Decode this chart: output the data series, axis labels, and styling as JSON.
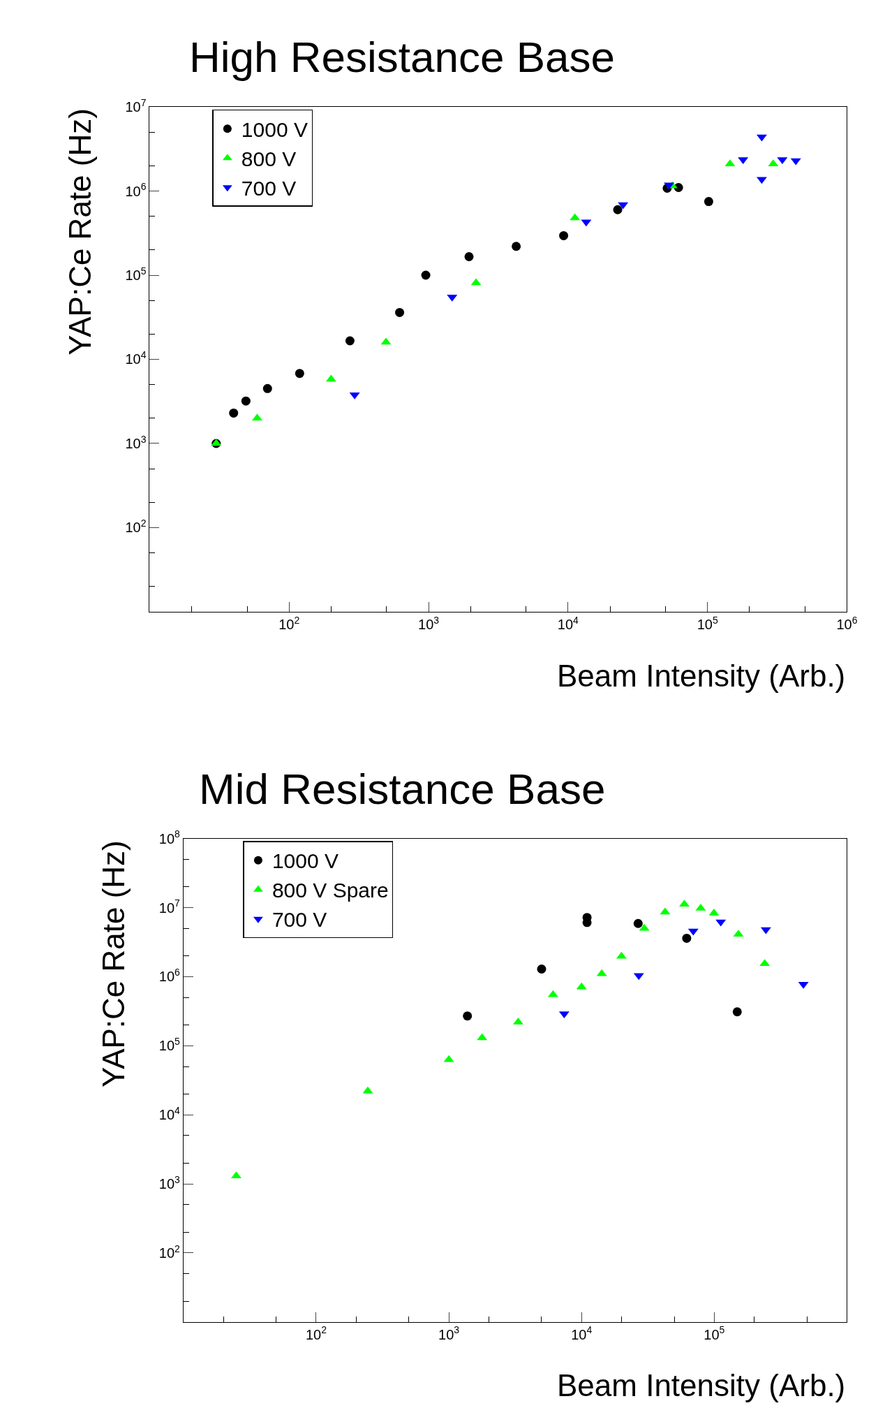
{
  "chart_data": [
    {
      "type": "scatter",
      "title": "High Resistance Base",
      "xlabel": "Beam Intensity (Arb.)",
      "ylabel": "YAP:Ce Rate (Hz)",
      "log": "xy",
      "legend": "top left",
      "xlim": [
        10,
        1000000
      ],
      "ylim": [
        10,
        10000000
      ],
      "xticks": [
        {
          "value": 100,
          "label": "10$^{2}$"
        },
        {
          "value": 1000,
          "label": "10$^{3}$"
        },
        {
          "value": 10000,
          "label": "10$^{4}$"
        },
        {
          "value": 100000,
          "label": "10$^{5}$"
        },
        {
          "value": 1000000,
          "label": "10$^{6}$"
        }
      ],
      "yticks": [
        {
          "value": 100,
          "label": "10$^{2}$"
        },
        {
          "value": 1000,
          "label": "10$^{3}$"
        },
        {
          "value": 10000,
          "label": "10$^{4}$"
        },
        {
          "value": 100000,
          "label": "10$^{5}$"
        },
        {
          "value": 1000000,
          "label": "10$^{6}$"
        },
        {
          "value": 10000000,
          "label": "10$^{7}$"
        }
      ],
      "series": [
        {
          "name": "1000 V",
          "color": "#000000",
          "marker": "circle",
          "x": [
            30,
            40,
            49,
            70,
            119,
            273,
            620,
            955,
            1950,
            4250,
            9300,
            22700,
            51400,
            62000,
            102000
          ],
          "values": [
            1000,
            2300,
            3200,
            4500,
            6800,
            16600,
            36000,
            100000,
            166000,
            220000,
            295000,
            600000,
            1080000,
            1100000,
            750000
          ]
        },
        {
          "name": "800 V",
          "color": "#00ff00",
          "marker": "triangle",
          "x": [
            30,
            59,
            200,
            495,
            2190,
            11200,
            56000,
            145000,
            296000
          ],
          "values": [
            1000,
            2000,
            5800,
            16000,
            81000,
            480000,
            1150000,
            2100000,
            2100000
          ]
        },
        {
          "name": "700 V",
          "color": "#0000ff",
          "marker": "triangle-down",
          "x": [
            295,
            1475,
            13500,
            24800,
            53000,
            180000,
            245000,
            245000,
            344000,
            430000
          ],
          "values": [
            3800,
            55000,
            430000,
            690000,
            1180000,
            2360000,
            4400000,
            1380000,
            2360000,
            2300000
          ]
        }
      ]
    },
    {
      "type": "scatter",
      "title": "Mid Resistance Base",
      "xlabel": "Beam Intensity (Arb.)",
      "ylabel": "YAP:Ce Rate (Hz)",
      "log": "xy",
      "legend": "top left",
      "xlim": [
        10,
        1000000
      ],
      "ylim": [
        10,
        100000000
      ],
      "xticks": [
        {
          "value": 100,
          "label": "10$^{2}$"
        },
        {
          "value": 1000,
          "label": "10$^{3}$"
        },
        {
          "value": 10000,
          "label": "10$^{4}$"
        },
        {
          "value": 100000,
          "label": "10$^{5}$"
        }
      ],
      "yticks": [
        {
          "value": 100,
          "label": "10$^{2}$"
        },
        {
          "value": 1000,
          "label": "10$^{3}$"
        },
        {
          "value": 10000,
          "label": "10$^{4}$"
        },
        {
          "value": 100000,
          "label": "10$^{5}$"
        },
        {
          "value": 1000000,
          "label": "10$^{6}$"
        },
        {
          "value": 10000000,
          "label": "10$^{7}$"
        },
        {
          "value": 100000000,
          "label": "10$^{8}$"
        }
      ],
      "series": [
        {
          "name": "1000 V",
          "color": "#000000",
          "marker": "circle",
          "x": [
            1380,
            5000,
            11000,
            11000,
            26700,
            62000,
            149000
          ],
          "values": [
            270000,
            1290000,
            7200000,
            6100000,
            5900000,
            3600000,
            310000
          ]
        },
        {
          "name": "800 V Spare",
          "color": "#00ff00",
          "marker": "triangle",
          "x": [
            25,
            245,
            1000,
            1780,
            3330,
            6100,
            10000,
            14200,
            20000,
            29700,
            42600,
            59500,
            79000,
            99500,
            152000,
            240000
          ],
          "values": [
            1300,
            22000,
            63000,
            130000,
            220000,
            550000,
            710000,
            1100000,
            1970000,
            5000000,
            8600000,
            11200000,
            9800000,
            8300000,
            4100000,
            1550000
          ]
        },
        {
          "name": "700 V",
          "color": "#0000ff",
          "marker": "triangle-down",
          "x": [
            7400,
            27000,
            69500,
            112000,
            245000,
            470000
          ],
          "values": [
            290000,
            1040000,
            4600000,
            6200000,
            4800000,
            780000
          ]
        }
      ]
    }
  ]
}
